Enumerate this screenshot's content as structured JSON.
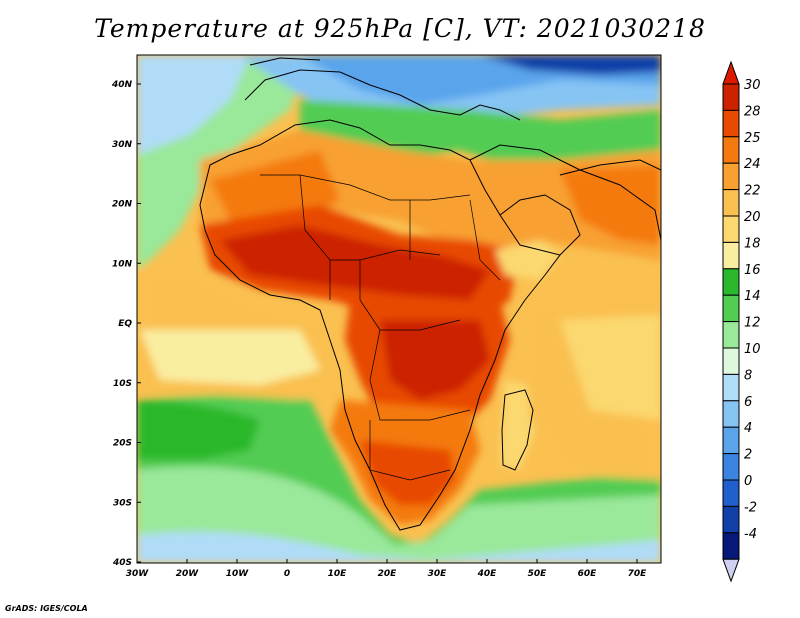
{
  "title": "Temperature at 925hPa [C], VT: 2021030218",
  "credit": "GrADS: IGES/COLA",
  "axes": {
    "lon_labels": [
      "30W",
      "20W",
      "10W",
      "0",
      "10E",
      "20E",
      "30E",
      "40E",
      "50E",
      "60E",
      "70E"
    ],
    "lat_labels": [
      "40N",
      "30N",
      "20N",
      "10N",
      "EQ",
      "10S",
      "20S",
      "30S",
      "40S"
    ]
  },
  "colorbar": {
    "labels": [
      "30",
      "28",
      "25",
      "24",
      "22",
      "20",
      "18",
      "16",
      "14",
      "12",
      "10",
      "8",
      "6",
      "4",
      "2",
      "0",
      "-2",
      "-4"
    ],
    "colors": [
      "#cc2200",
      "#e84a00",
      "#f47a10",
      "#f8a030",
      "#fac050",
      "#fbd870",
      "#f9eea0",
      "#2cb82c",
      "#52cc52",
      "#9ae89a",
      "#ddf8dd",
      "#b0dcf8",
      "#86c4f4",
      "#5aa4ec",
      "#3a84e0",
      "#2060cc",
      "#1040a8",
      "#081878"
    ],
    "over_color": "#dd1a00",
    "under_color": "#d0d0f0"
  },
  "legend_ticks": {
    "ref_lon": "0",
    "ref_lat": "EQ"
  }
}
